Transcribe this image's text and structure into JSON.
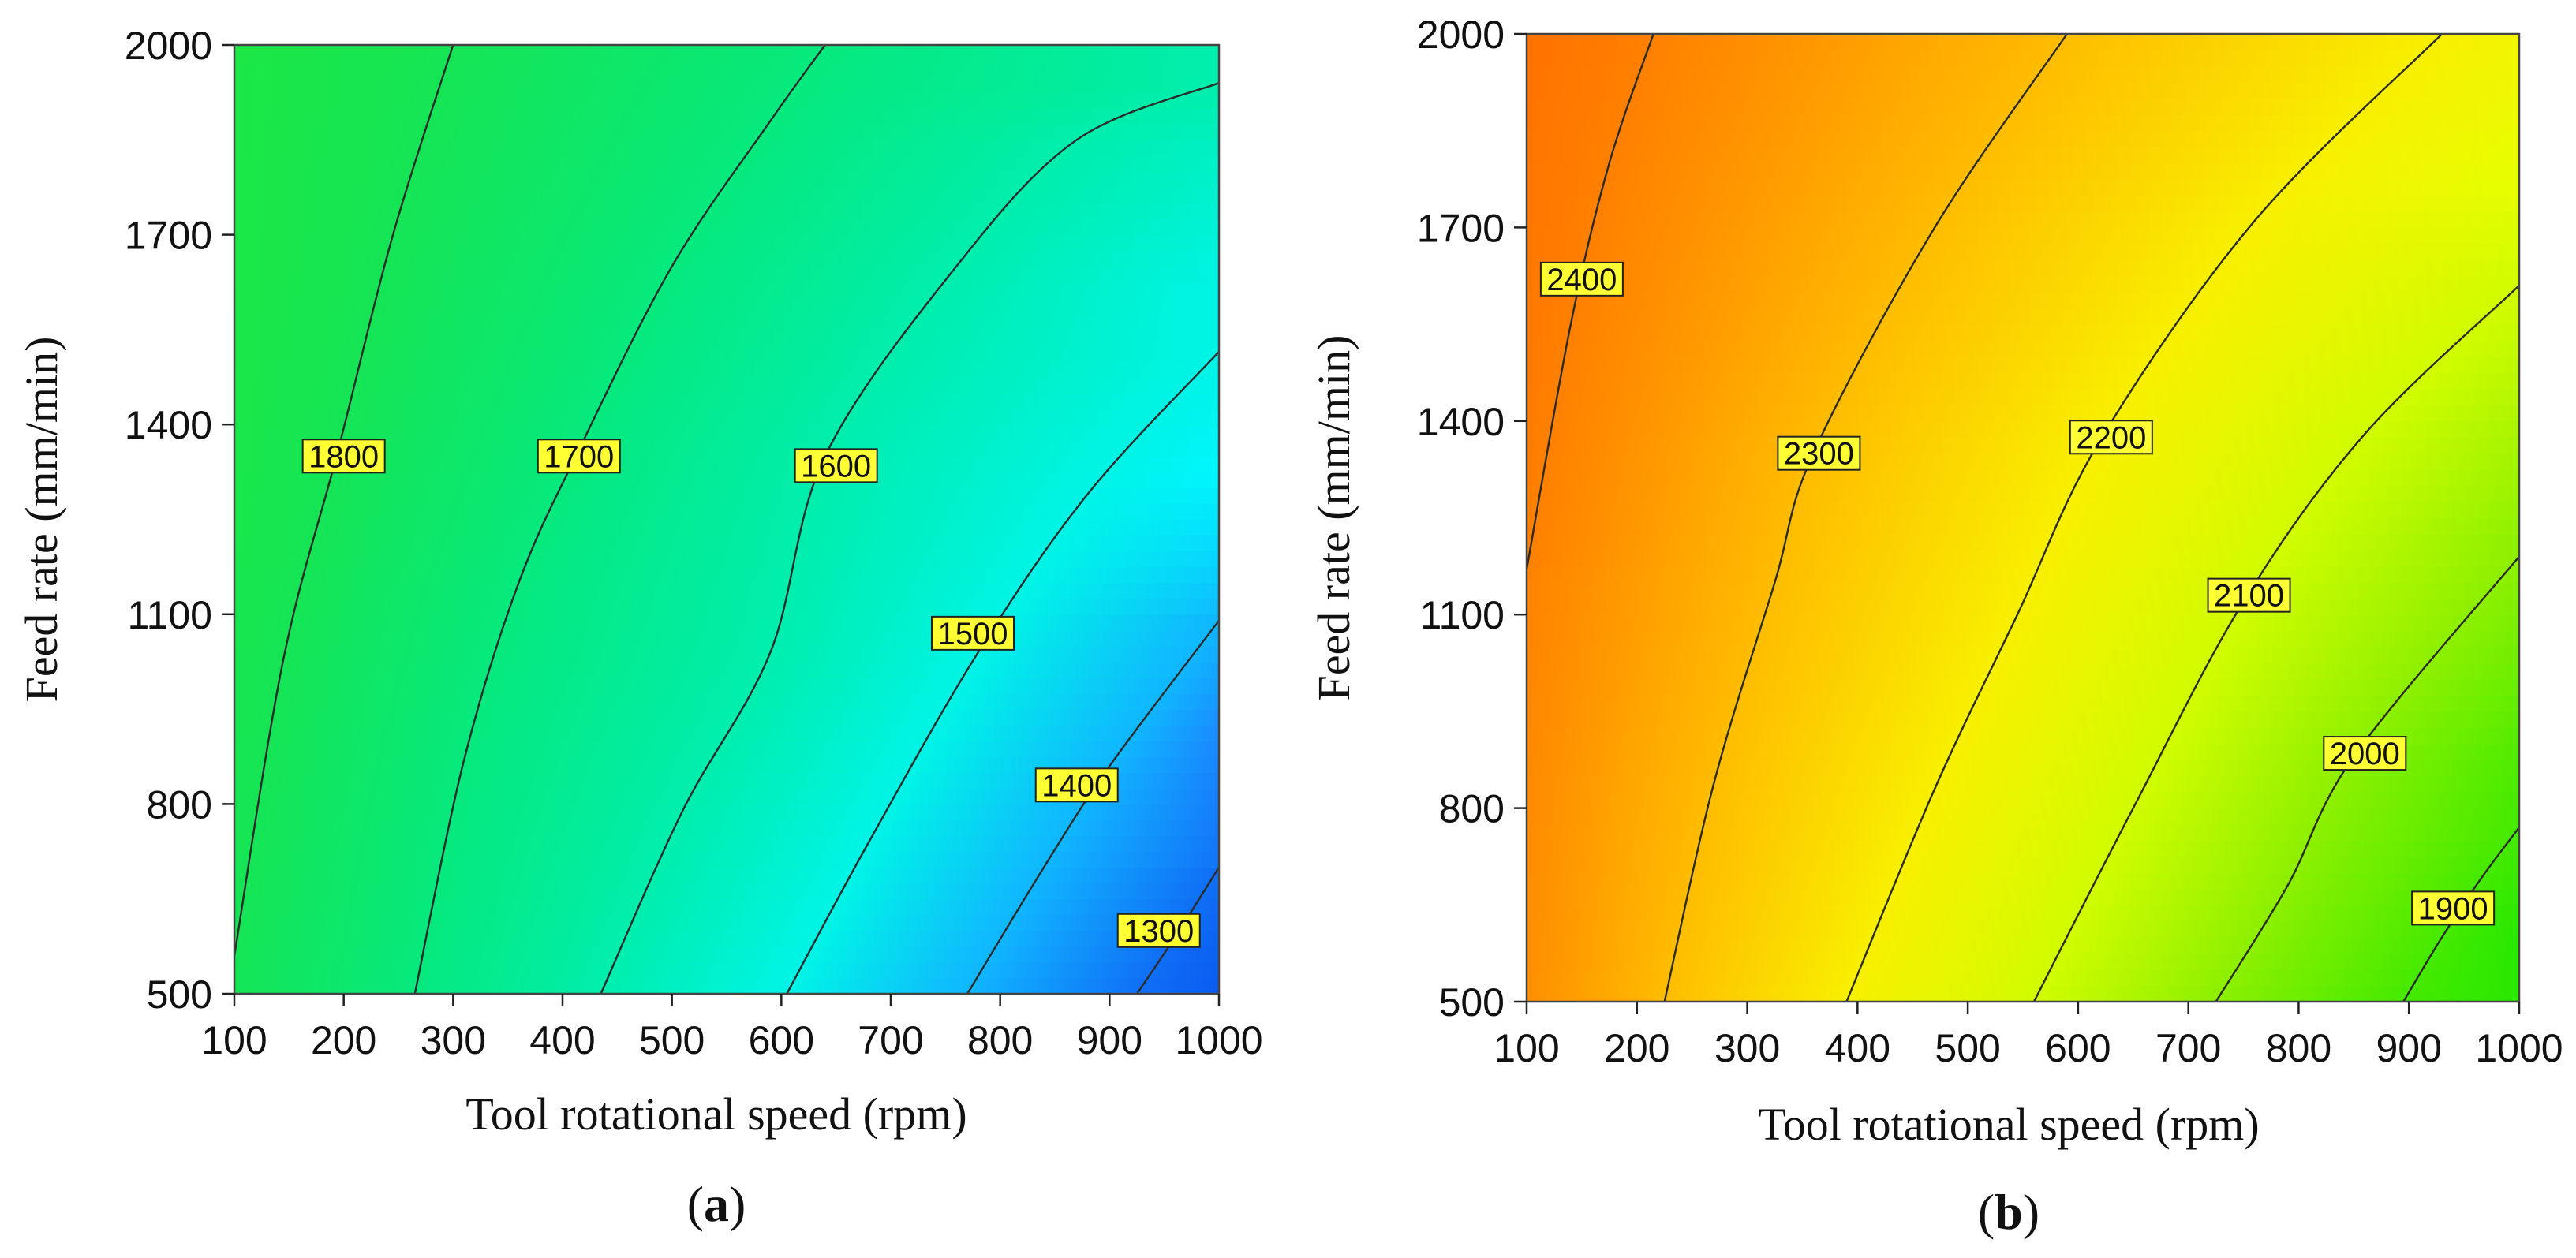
{
  "figure": {
    "background": "#ffffff"
  },
  "chart_data": [
    {
      "type": "contour",
      "panel_label": "a",
      "xlabel": "Tool rotational speed (rpm)",
      "ylabel": "Feed rate (mm/min)",
      "xlim": [
        100,
        1000
      ],
      "ylim": [
        500,
        2000
      ],
      "xticks": [
        "100",
        "200",
        "300",
        "400",
        "500",
        "600",
        "700",
        "800",
        "900",
        "1000"
      ],
      "yticks": [
        "500",
        "800",
        "1100",
        "1400",
        "1700",
        "2000"
      ],
      "colormap": [
        {
          "value": 1260,
          "color": "#0a5cf0"
        },
        {
          "value": 1360,
          "color": "#1a8cff"
        },
        {
          "value": 1460,
          "color": "#00f6ff"
        },
        {
          "value": 1560,
          "color": "#00f0c0"
        },
        {
          "value": 1660,
          "color": "#00ec90"
        },
        {
          "value": 1760,
          "color": "#10e460"
        },
        {
          "value": 1880,
          "color": "#1ee840"
        }
      ],
      "contours": [
        {
          "level": 1800,
          "label": "1800",
          "points": [
            [
              100,
              560
            ],
            [
              145,
              1030
            ],
            [
              195,
              1360
            ],
            [
              245,
              1700
            ],
            [
              300,
              2000
            ]
          ]
        },
        {
          "level": 1700,
          "label": "1700",
          "points": [
            [
              265,
              500
            ],
            [
              310,
              870
            ],
            [
              360,
              1150
            ],
            [
              415,
              1360
            ],
            [
              500,
              1650
            ],
            [
              590,
              1880
            ],
            [
              640,
              2000
            ]
          ]
        },
        {
          "level": 1600,
          "label": "1600",
          "points": [
            [
              435,
              500
            ],
            [
              510,
              790
            ],
            [
              590,
              1040
            ],
            [
              640,
              1350
            ],
            [
              760,
              1650
            ],
            [
              870,
              1850
            ],
            [
              1000,
              1940
            ]
          ]
        },
        {
          "level": 1500,
          "label": "1500",
          "points": [
            [
              605,
              500
            ],
            [
              680,
              740
            ],
            [
              780,
              1040
            ],
            [
              880,
              1290
            ],
            [
              1000,
              1515
            ]
          ]
        },
        {
          "level": 1400,
          "label": "1400",
          "points": [
            [
              770,
              500
            ],
            [
              840,
              700
            ],
            [
              900,
              860
            ],
            [
              1000,
              1090
            ]
          ]
        },
        {
          "level": 1300,
          "label": "1300",
          "points": [
            [
              925,
              500
            ],
            [
              960,
              590
            ],
            [
              1000,
              700
            ]
          ]
        }
      ],
      "contour_labels": [
        {
          "text": "1800",
          "x": 200,
          "y": 1350
        },
        {
          "text": "1700",
          "x": 415,
          "y": 1350
        },
        {
          "text": "1600",
          "x": 650,
          "y": 1335
        },
        {
          "text": "1500",
          "x": 775,
          "y": 1070
        },
        {
          "text": "1400",
          "x": 870,
          "y": 830
        },
        {
          "text": "1300",
          "x": 945,
          "y": 600
        }
      ]
    },
    {
      "type": "contour",
      "panel_label": "b",
      "xlabel": "Tool rotational speed (rpm)",
      "ylabel": "Feed rate (mm/min)",
      "xlim": [
        100,
        1000
      ],
      "ylim": [
        500,
        2000
      ],
      "xticks": [
        "100",
        "200",
        "300",
        "400",
        "500",
        "600",
        "700",
        "800",
        "900",
        "1000"
      ],
      "yticks": [
        "500",
        "800",
        "1100",
        "1400",
        "1700",
        "2000"
      ],
      "colormap": [
        {
          "value": 1860,
          "color": "#28e800"
        },
        {
          "value": 2000,
          "color": "#8cf000"
        },
        {
          "value": 2130,
          "color": "#e6ff00"
        },
        {
          "value": 2230,
          "color": "#ffea00"
        },
        {
          "value": 2320,
          "color": "#ffb000"
        },
        {
          "value": 2400,
          "color": "#ff8000"
        },
        {
          "value": 2480,
          "color": "#ff5a00"
        }
      ],
      "contours": [
        {
          "level": 2400,
          "label": "2400",
          "points": [
            [
              100,
              1170
            ],
            [
              140,
              1550
            ],
            [
              175,
              1800
            ],
            [
              215,
              2000
            ]
          ]
        },
        {
          "level": 2300,
          "label": "2300",
          "points": [
            [
              225,
              500
            ],
            [
              270,
              840
            ],
            [
              325,
              1150
            ],
            [
              360,
              1350
            ],
            [
              470,
              1700
            ],
            [
              590,
              2000
            ]
          ]
        },
        {
          "level": 2200,
          "label": "2200",
          "points": [
            [
              390,
              500
            ],
            [
              470,
              830
            ],
            [
              545,
              1100
            ],
            [
              620,
              1370
            ],
            [
              760,
              1710
            ],
            [
              930,
              2000
            ]
          ]
        },
        {
          "level": 2100,
          "label": "2100",
          "points": [
            [
              560,
              500
            ],
            [
              650,
              800
            ],
            [
              750,
              1120
            ],
            [
              860,
              1380
            ],
            [
              1000,
              1610
            ]
          ]
        },
        {
          "level": 2000,
          "label": "2000",
          "points": [
            [
              725,
              500
            ],
            [
              790,
              680
            ],
            [
              850,
              880
            ],
            [
              1000,
              1190
            ]
          ]
        },
        {
          "level": 1900,
          "label": "1900",
          "points": [
            [
              895,
              500
            ],
            [
              930,
              600
            ],
            [
              965,
              690
            ],
            [
              1000,
              770
            ]
          ]
        }
      ],
      "contour_labels": [
        {
          "text": "2400",
          "x": 150,
          "y": 1620
        },
        {
          "text": "2300",
          "x": 365,
          "y": 1350
        },
        {
          "text": "2200",
          "x": 630,
          "y": 1375
        },
        {
          "text": "2100",
          "x": 755,
          "y": 1130
        },
        {
          "text": "2000",
          "x": 860,
          "y": 885
        },
        {
          "text": "1900",
          "x": 940,
          "y": 645
        }
      ]
    }
  ]
}
